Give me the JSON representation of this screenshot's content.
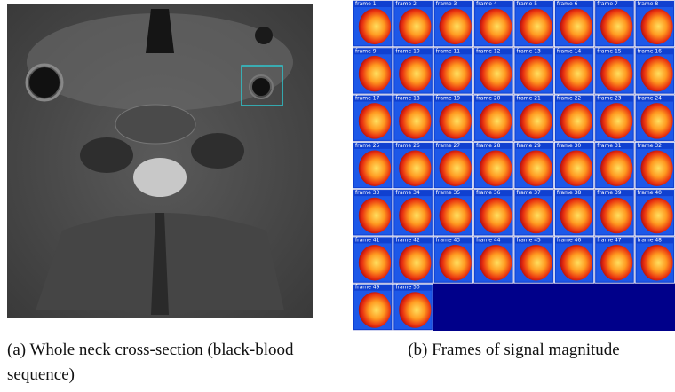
{
  "figure": {
    "panel_a": {
      "caption": "(a) Whole neck cross-section (black-blood sequence)"
    },
    "panel_b": {
      "caption": "(b) Frames of signal magnitude",
      "frames": [
        "frame 1",
        "frame 2",
        "frame 3",
        "frame 4",
        "frame 5",
        "frame 6",
        "frame 7",
        "frame 8",
        "frame 9",
        "frame 10",
        "frame 11",
        "frame 12",
        "frame 13",
        "frame 14",
        "frame 15",
        "frame 16",
        "frame 17",
        "frame 18",
        "frame 19",
        "frame 20",
        "frame 21",
        "frame 22",
        "frame 23",
        "frame 24",
        "frame 25",
        "frame 26",
        "frame 27",
        "frame 28",
        "frame 29",
        "frame 30",
        "frame 31",
        "frame 32",
        "frame 33",
        "frame 34",
        "frame 35",
        "frame 36",
        "frame 37",
        "frame 38",
        "frame 39",
        "frame 40",
        "frame 41",
        "frame 42",
        "frame 43",
        "frame 44",
        "frame 45",
        "frame 46",
        "frame 47",
        "frame 48",
        "frame 49",
        "frame 50"
      ]
    }
  }
}
